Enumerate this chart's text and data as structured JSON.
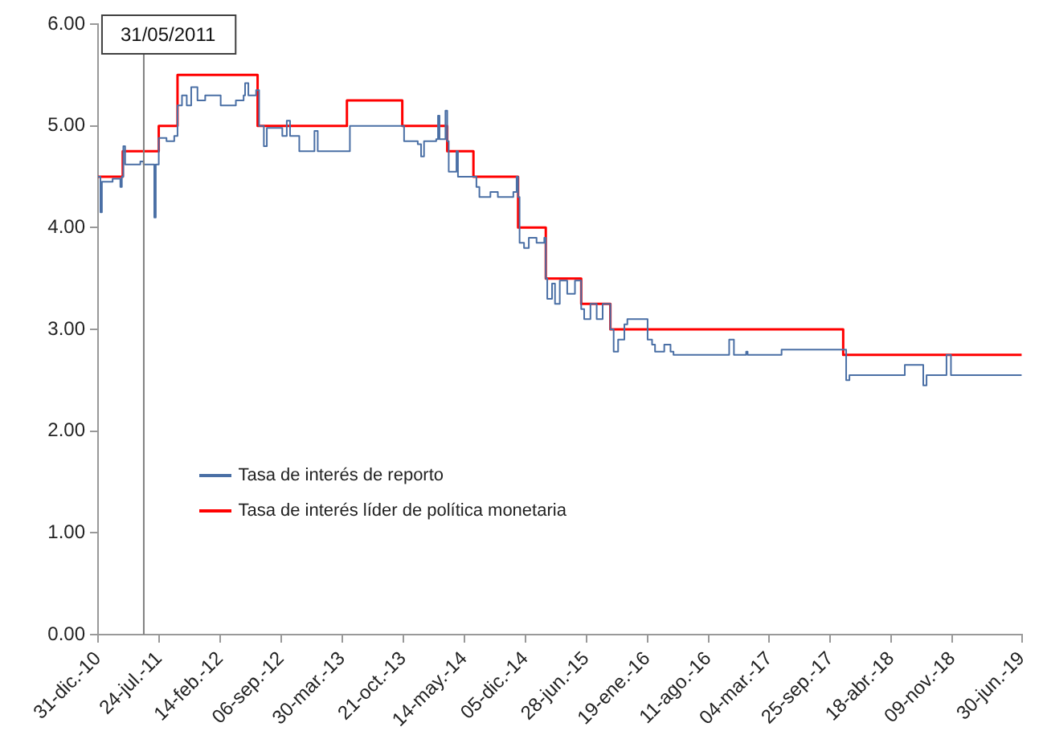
{
  "chart_data": {
    "type": "line",
    "xlim": [
      "2010-12-31",
      "2019-06-30"
    ],
    "xticks": [
      {
        "value": "2010-12-31",
        "label": "31-dic.-10"
      },
      {
        "value": "2011-07-24",
        "label": "24-jul.-11"
      },
      {
        "value": "2012-02-14",
        "label": "14-feb.-12"
      },
      {
        "value": "2012-09-06",
        "label": "06-sep.-12"
      },
      {
        "value": "2013-03-30",
        "label": "30-mar.-13"
      },
      {
        "value": "2013-10-21",
        "label": "21-oct.-13"
      },
      {
        "value": "2014-05-14",
        "label": "14-may.-14"
      },
      {
        "value": "2014-12-05",
        "label": "05-dic.-14"
      },
      {
        "value": "2015-06-28",
        "label": "28-jun.-15"
      },
      {
        "value": "2016-01-19",
        "label": "19-ene.-16"
      },
      {
        "value": "2016-08-11",
        "label": "11-ago.-16"
      },
      {
        "value": "2017-03-04",
        "label": "04-mar.-17"
      },
      {
        "value": "2017-09-25",
        "label": "25-sep.-17"
      },
      {
        "value": "2018-04-18",
        "label": "18-abr.-18"
      },
      {
        "value": "2018-11-09",
        "label": "09-nov.-18"
      },
      {
        "value": "2019-06-30",
        "label": "30-jun.-19"
      }
    ],
    "ylim": [
      0,
      6
    ],
    "yticks": [
      {
        "value": 0,
        "label": "0.00"
      },
      {
        "value": 1,
        "label": "1.00"
      },
      {
        "value": 2,
        "label": "2.00"
      },
      {
        "value": 3,
        "label": "3.00"
      },
      {
        "value": 4,
        "label": "4.00"
      },
      {
        "value": 5,
        "label": "5.00"
      },
      {
        "value": 6,
        "label": "6.00"
      }
    ],
    "grid": false,
    "legend": "bottom left",
    "marker": "none",
    "line_style": "solid",
    "ref_lines": [
      {
        "axis": "x",
        "value": "2011-05-31",
        "label": "31/05/2011",
        "color": "#808080"
      }
    ],
    "series": [
      {
        "name": "Tasa de interés de reporto",
        "type": "step",
        "color": "#4a6fa5",
        "x": [
          "2010-12-31",
          "2011-01-08",
          "2011-01-13",
          "2011-02-18",
          "2011-03-16",
          "2011-03-21",
          "2011-03-26",
          "2011-04-01",
          "2011-05-22",
          "2011-06-02",
          "2011-07-03",
          "2011-07-08",
          "2011-07-13",
          "2011-07-23",
          "2011-08-18",
          "2011-09-13",
          "2011-09-24",
          "2011-10-09",
          "2011-10-25",
          "2011-11-09",
          "2011-11-30",
          "2011-12-26",
          "2012-02-16",
          "2012-04-07",
          "2012-05-03",
          "2012-05-08",
          "2012-05-19",
          "2012-06-14",
          "2012-06-24",
          "2012-07-10",
          "2012-07-20",
          "2012-09-10",
          "2012-09-25",
          "2012-10-06",
          "2012-11-06",
          "2012-12-22",
          "2012-12-27",
          "2013-01-07",
          "2013-04-20",
          "2013-04-25",
          "2013-10-18",
          "2013-10-24",
          "2013-12-09",
          "2013-12-20",
          "2013-12-30",
          "2014-02-09",
          "2014-02-15",
          "2014-02-20",
          "2014-03-07",
          "2014-03-12",
          "2014-03-18",
          "2014-03-23",
          "2014-04-02",
          "2014-04-18",
          "2014-04-23",
          "2014-06-08",
          "2014-06-24",
          "2014-07-04",
          "2014-08-10",
          "2014-09-04",
          "2014-10-26",
          "2014-11-06",
          "2014-11-11",
          "2014-11-16",
          "2014-12-01",
          "2014-12-17",
          "2015-01-12",
          "2015-02-07",
          "2015-02-12",
          "2015-02-17",
          "2015-03-05",
          "2015-03-15",
          "2015-03-31",
          "2015-04-25",
          "2015-05-21",
          "2015-06-11",
          "2015-06-21",
          "2015-07-12",
          "2015-08-02",
          "2015-08-22",
          "2015-09-17",
          "2015-09-28",
          "2015-10-13",
          "2015-11-03",
          "2015-11-13",
          "2016-01-09",
          "2016-01-20",
          "2016-02-04",
          "2016-02-14",
          "2016-03-16",
          "2016-04-06",
          "2016-04-16",
          "2016-10-15",
          "2016-10-20",
          "2016-11-05",
          "2016-12-16",
          "2016-12-21",
          "2017-04-14",
          "2017-11-07",
          "2017-11-17",
          "2017-11-28",
          "2018-06-02",
          "2018-07-03",
          "2018-08-03",
          "2018-08-14",
          "2018-10-20",
          "2018-11-04",
          "2019-06-30"
        ],
        "values": [
          4.5,
          4.15,
          4.45,
          4.48,
          4.4,
          4.5,
          4.8,
          4.62,
          4.65,
          4.62,
          4.62,
          4.1,
          4.62,
          4.88,
          4.85,
          4.9,
          5.2,
          5.3,
          5.2,
          5.38,
          5.25,
          5.3,
          5.2,
          5.25,
          5.3,
          5.42,
          5.3,
          5.35,
          5.0,
          4.8,
          4.98,
          4.9,
          5.05,
          4.9,
          4.75,
          4.75,
          4.95,
          4.75,
          4.75,
          5.0,
          5.0,
          4.85,
          4.82,
          4.7,
          4.85,
          4.87,
          5.1,
          4.87,
          4.87,
          5.15,
          4.85,
          4.55,
          4.55,
          4.75,
          4.5,
          4.5,
          4.4,
          4.3,
          4.35,
          4.3,
          4.35,
          4.5,
          4.3,
          3.85,
          3.8,
          3.9,
          3.85,
          3.9,
          3.5,
          3.3,
          3.45,
          3.25,
          3.48,
          3.35,
          3.48,
          3.2,
          3.1,
          3.25,
          3.1,
          3.25,
          3.0,
          2.78,
          2.9,
          3.05,
          3.1,
          3.1,
          2.9,
          2.85,
          2.78,
          2.85,
          2.78,
          2.75,
          2.75,
          2.9,
          2.75,
          2.78,
          2.75,
          2.8,
          2.8,
          2.5,
          2.55,
          2.65,
          2.65,
          2.45,
          2.55,
          2.75,
          2.55,
          2.55
        ]
      },
      {
        "name": "Tasa de interés líder de política monetaria",
        "type": "step",
        "color": "#ff0000",
        "x": [
          "2010-12-31",
          "2011-03-24",
          "2011-07-23",
          "2011-09-24",
          "2012-06-19",
          "2013-04-15",
          "2013-10-18",
          "2014-03-18",
          "2014-06-14",
          "2014-11-11",
          "2015-02-12",
          "2015-06-11",
          "2015-09-17",
          "2017-11-07",
          "2019-06-30"
        ],
        "values": [
          4.5,
          4.75,
          5.0,
          5.5,
          5.0,
          5.25,
          5.0,
          4.75,
          4.5,
          4.0,
          3.5,
          3.25,
          3.0,
          2.75,
          2.75
        ]
      }
    ]
  }
}
